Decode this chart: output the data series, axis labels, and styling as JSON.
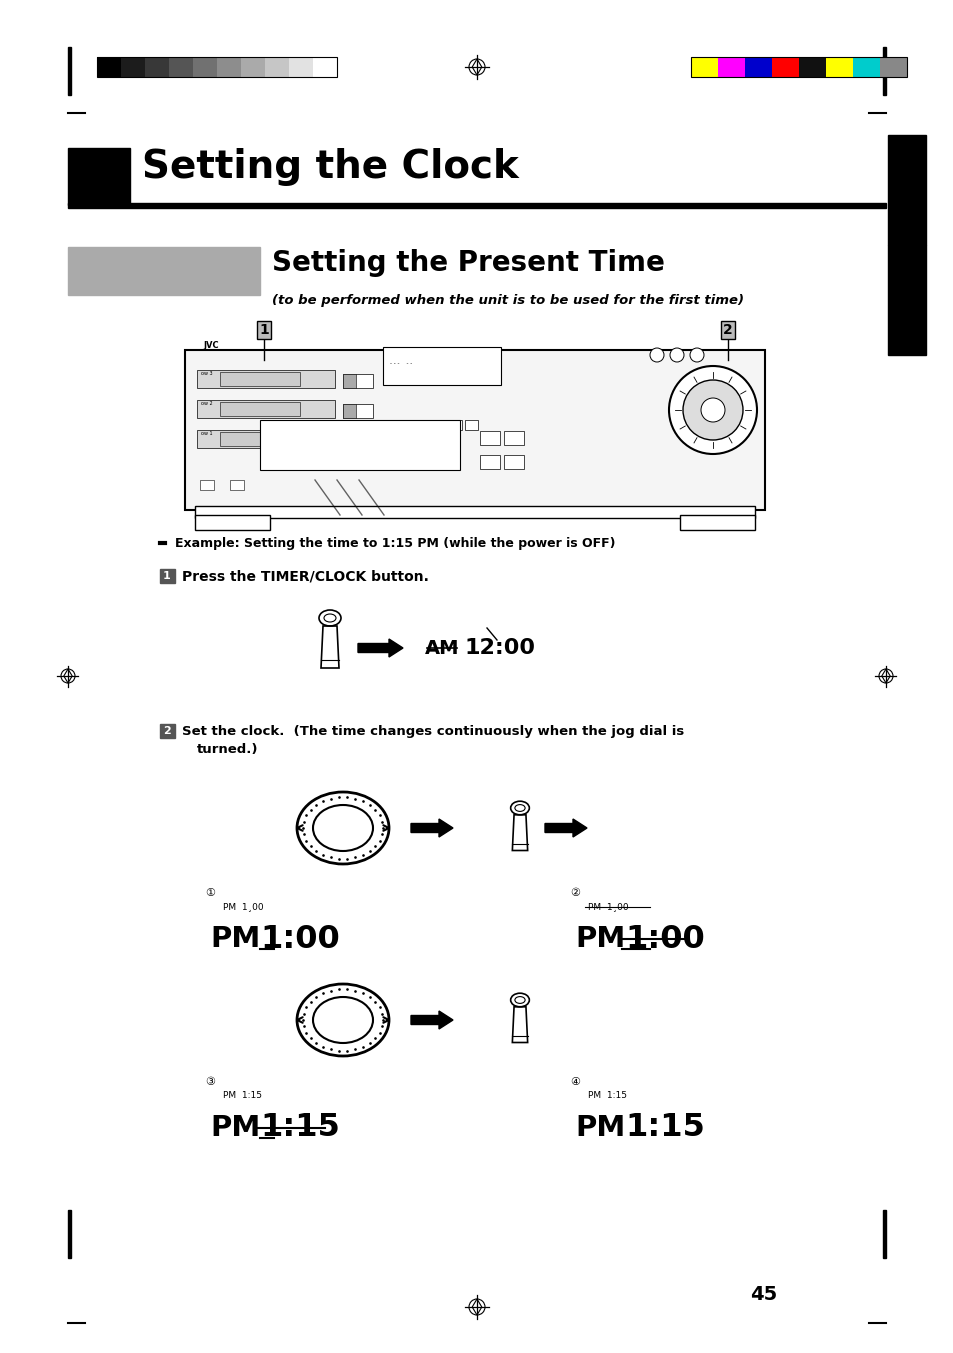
{
  "bg_color": "#ffffff",
  "page_width": 9.54,
  "page_height": 13.53,
  "title": "Setting the Clock",
  "subtitle": "Setting the Present Time",
  "subtitle2": "(to be performed when the unit is to be used for the first time)",
  "bullet": "Example: Setting the time to 1:15 PM (while the power is OFF)",
  "step1_label": "1",
  "step1_text": "Press the TIMER/CLOCK button.",
  "step2_label": "2",
  "step2_text1": "Set the clock.  (The time changes continuously when the jog dial is",
  "step2_text2": "turned.)",
  "page_number": "45",
  "grayscale_colors": [
    "#000000",
    "#1c1c1c",
    "#383838",
    "#555555",
    "#717171",
    "#8d8d8d",
    "#aaaaaa",
    "#c6c6c6",
    "#e2e2e2",
    "#ffffff"
  ],
  "color_bars": [
    "#ffff00",
    "#ff00ff",
    "#0000cc",
    "#ff0000",
    "#111111",
    "#ffff00",
    "#00cccc",
    "#888888"
  ]
}
